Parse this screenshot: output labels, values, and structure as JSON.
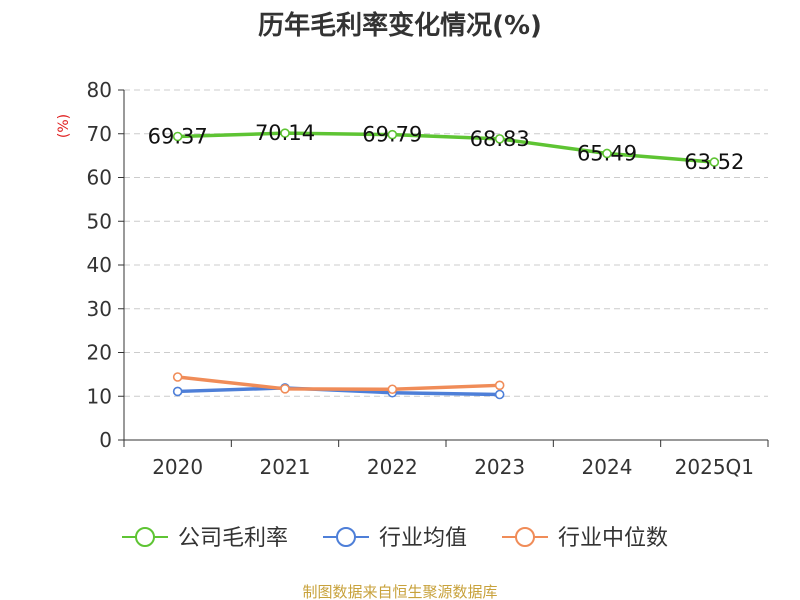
{
  "chart_data": {
    "type": "line",
    "title": "历年毛利率变化情况(%)",
    "ylabel": "(%)",
    "xlabel": "",
    "categories": [
      "2020",
      "2021",
      "2022",
      "2023",
      "2024",
      "2025Q1"
    ],
    "ylim": [
      0,
      80
    ],
    "yticks": [
      0,
      10,
      20,
      30,
      40,
      50,
      60,
      70,
      80
    ],
    "grid": true,
    "legend_position": "bottom",
    "series": [
      {
        "name": "公司毛利率",
        "color": "#5ec433",
        "values": [
          69.37,
          70.14,
          69.79,
          68.83,
          65.49,
          63.52
        ],
        "labels": [
          "69.37",
          "70.14",
          "69.79",
          "68.83",
          "65.49",
          "63.52"
        ]
      },
      {
        "name": "行业均值",
        "color": "#4e7fd8",
        "values": [
          11.1,
          11.9,
          10.8,
          10.4,
          null,
          null
        ]
      },
      {
        "name": "行业中位数",
        "color": "#f08c58",
        "values": [
          14.4,
          11.7,
          11.6,
          12.5,
          null,
          null
        ]
      }
    ],
    "source": "制图数据来自恒生聚源数据库"
  }
}
